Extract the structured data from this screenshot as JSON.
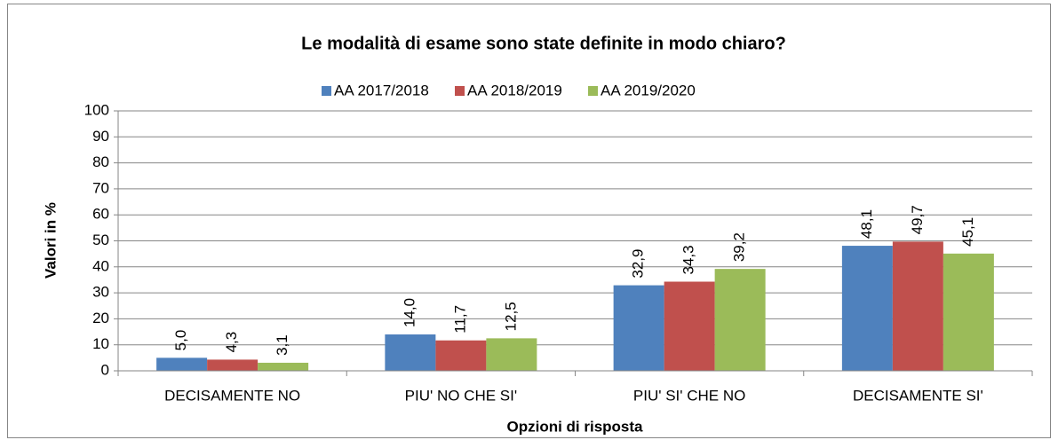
{
  "chart_data": {
    "type": "bar",
    "title": "Le modalità di esame sono state definite in modo chiaro?",
    "y_label": "Valori in %",
    "x_label": "Opzioni di risposta",
    "categories": [
      "DECISAMENTE NO",
      "PIU' NO CHE SI'",
      "PIU' SI' CHE NO",
      "DECISAMENTE SI'"
    ],
    "series": [
      {
        "name": "AA 2017/2018",
        "color": "#4f81bd",
        "values": [
          5.0,
          14.0,
          32.9,
          48.1
        ],
        "value_labels": [
          "5,0",
          "14,0",
          "32,9",
          "48,1"
        ]
      },
      {
        "name": "AA 2018/2019",
        "color": "#c0504d",
        "values": [
          4.3,
          11.7,
          34.3,
          49.7
        ],
        "value_labels": [
          "4,3",
          "11,7",
          "34,3",
          "49,7"
        ]
      },
      {
        "name": "AA 2019/2020",
        "color": "#9bbb59",
        "values": [
          3.1,
          12.5,
          39.2,
          45.1
        ],
        "value_labels": [
          "3,1",
          "12,5",
          "39,2",
          "45,1"
        ]
      }
    ],
    "ylim": [
      0,
      100
    ],
    "yticks": [
      0,
      10,
      20,
      30,
      40,
      50,
      60,
      70,
      80,
      90,
      100
    ],
    "grid": true,
    "legend": "top"
  }
}
